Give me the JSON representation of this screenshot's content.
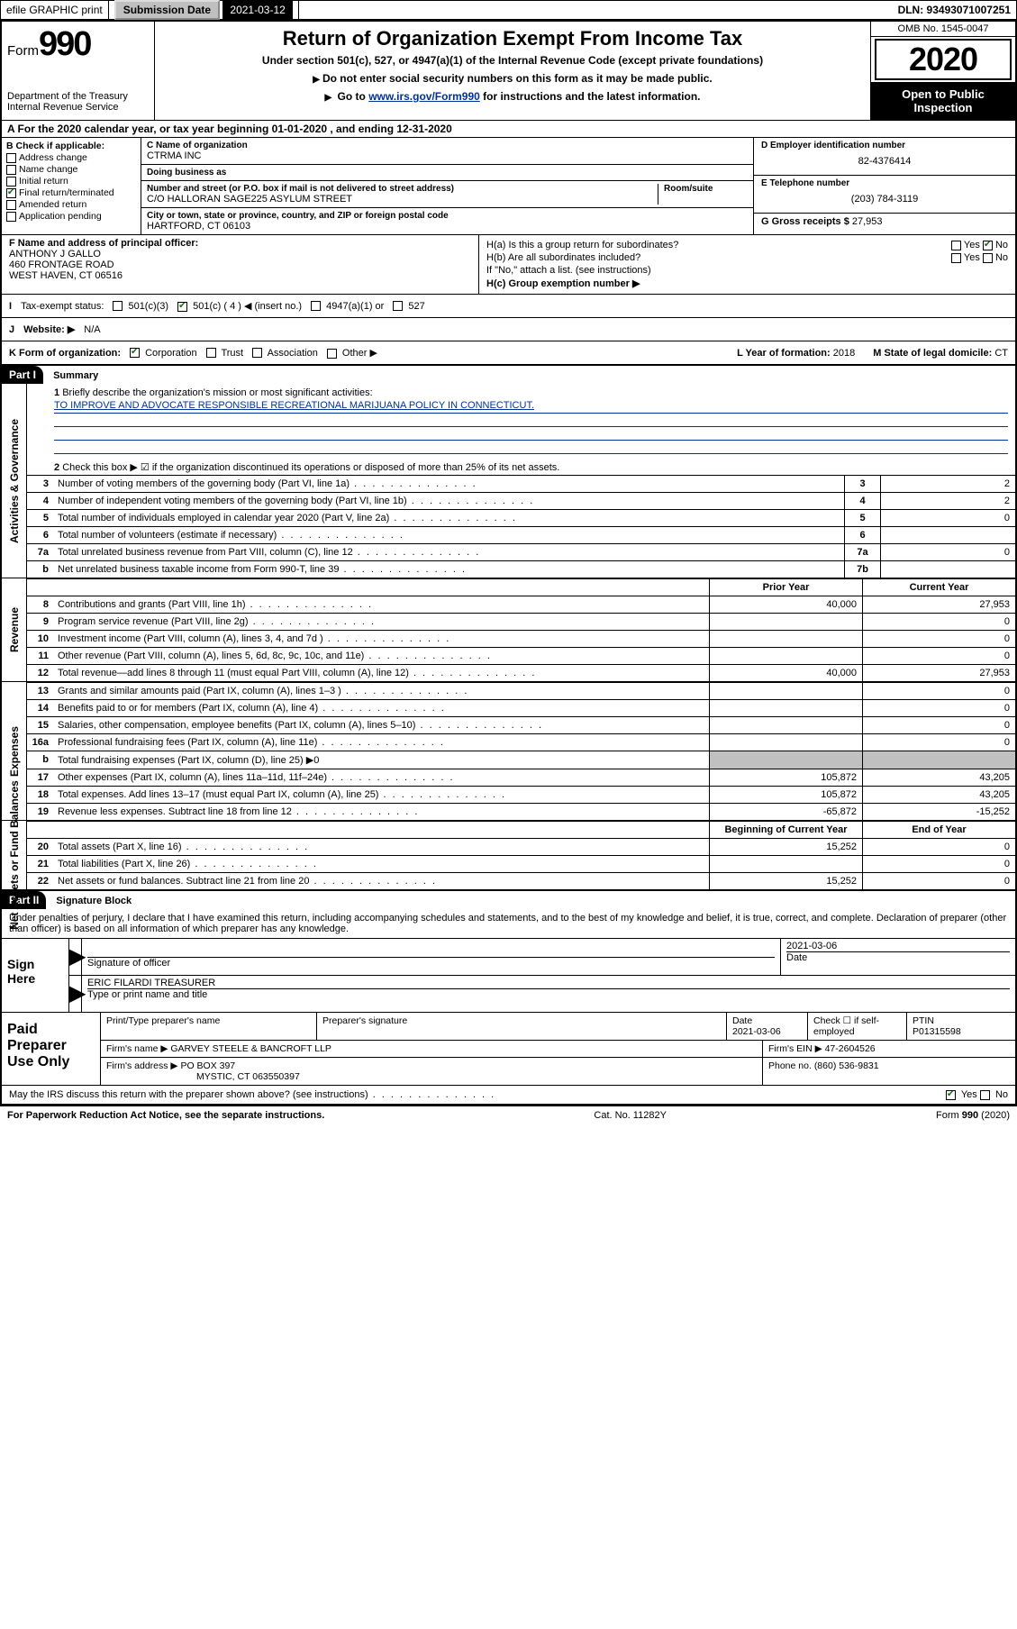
{
  "topbar": {
    "efile": "efile GRAPHIC print",
    "sub_label": "Submission Date",
    "sub_date": "2021-03-12",
    "dln": "DLN: 93493071007251"
  },
  "header": {
    "form_word": "Form",
    "form_num": "990",
    "dept": "Department of the Treasury",
    "irs": "Internal Revenue Service",
    "title": "Return of Organization Exempt From Income Tax",
    "subtitle": "Under section 501(c), 527, or 4947(a)(1) of the Internal Revenue Code (except private foundations)",
    "instr1": "Do not enter social security numbers on this form as it may be made public.",
    "instr2_pre": "Go to ",
    "instr2_link": "www.irs.gov/Form990",
    "instr2_post": " for instructions and the latest information.",
    "omb": "OMB No. 1545-0047",
    "year": "2020",
    "open": "Open to Public Inspection"
  },
  "rowA": "A For the 2020 calendar year, or tax year beginning 01-01-2020   , and ending 12-31-2020",
  "colB": {
    "title": "B Check if applicable:",
    "opts": [
      "Address change",
      "Name change",
      "Initial return",
      "Final return/terminated",
      "Amended return",
      "Application pending"
    ],
    "checked_idx": 3
  },
  "org": {
    "name_lbl": "C Name of organization",
    "name": "CTRMA INC",
    "dba_lbl": "Doing business as",
    "dba": "",
    "addr_lbl": "Number and street (or P.O. box if mail is not delivered to street address)",
    "room_lbl": "Room/suite",
    "addr": "C/O HALLORAN SAGE225 ASYLUM STREET",
    "city_lbl": "City or town, state or province, country, and ZIP or foreign postal code",
    "city": "HARTFORD, CT  06103"
  },
  "right": {
    "ein_lbl": "D Employer identification number",
    "ein": "82-4376414",
    "tel_lbl": "E Telephone number",
    "tel": "(203) 784-3119",
    "gross_lbl": "G Gross receipts $",
    "gross": "27,953"
  },
  "rowF": {
    "lbl": "F Name and address of principal officer:",
    "name": "ANTHONY J GALLO",
    "addr1": "460 FRONTAGE ROAD",
    "addr2": "WEST HAVEN, CT  06516"
  },
  "colH": {
    "ha": "H(a)  Is this a group return for subordinates?",
    "hb": "H(b)  Are all subordinates included?",
    "attach": "If \"No,\" attach a list. (see instructions)",
    "hc": "H(c)  Group exemption number ▶",
    "yes": "Yes",
    "no": "No"
  },
  "rowI": {
    "lbl": "I",
    "text": "Tax-exempt status:",
    "o1": "501(c)(3)",
    "o2": "501(c) ( 4 ) ◀ (insert no.)",
    "o3": "4947(a)(1) or",
    "o4": "527"
  },
  "rowJ": {
    "lbl": "J",
    "text": "Website: ▶",
    "val": "N/A"
  },
  "rowK": {
    "lbl": "K Form of organization:",
    "o1": "Corporation",
    "o2": "Trust",
    "o3": "Association",
    "o4": "Other ▶",
    "yof_lbl": "L Year of formation:",
    "yof": "2018",
    "dom_lbl": "M State of legal domicile:",
    "dom": "CT"
  },
  "partI": {
    "tag": "Part I",
    "title": "Summary"
  },
  "summary": {
    "q1_lbl": "1",
    "q1": "Briefly describe the organization's mission or most significant activities:",
    "q1_val": "TO IMPROVE AND ADVOCATE RESPONSIBLE RECREATIONAL MARIJUANA POLICY IN CONNECTICUT.",
    "q2_lbl": "2",
    "q2": "Check this box ▶ ☑  if the organization discontinued its operations or disposed of more than 25% of its net assets.",
    "lines": [
      {
        "n": "3",
        "t": "Number of voting members of the governing body (Part VI, line 1a)",
        "box": "3",
        "v": "2"
      },
      {
        "n": "4",
        "t": "Number of independent voting members of the governing body (Part VI, line 1b)",
        "box": "4",
        "v": "2"
      },
      {
        "n": "5",
        "t": "Total number of individuals employed in calendar year 2020 (Part V, line 2a)",
        "box": "5",
        "v": "0"
      },
      {
        "n": "6",
        "t": "Total number of volunteers (estimate if necessary)",
        "box": "6",
        "v": ""
      },
      {
        "n": "7a",
        "t": "Total unrelated business revenue from Part VIII, column (C), line 12",
        "box": "7a",
        "v": "0"
      },
      {
        "n": "b",
        "t": "Net unrelated business taxable income from Form 990-T, line 39",
        "box": "7b",
        "v": ""
      }
    ]
  },
  "sections": {
    "side_ag": "Activities & Governance",
    "side_rev": "Revenue",
    "side_exp": "Expenses",
    "side_na": "Net Assets or Fund Balances",
    "col_prior": "Prior Year",
    "col_curr": "Current Year",
    "col_boy": "Beginning of Current Year",
    "col_eoy": "End of Year"
  },
  "revenue": [
    {
      "n": "8",
      "t": "Contributions and grants (Part VIII, line 1h)",
      "p": "40,000",
      "c": "27,953"
    },
    {
      "n": "9",
      "t": "Program service revenue (Part VIII, line 2g)",
      "p": "",
      "c": "0"
    },
    {
      "n": "10",
      "t": "Investment income (Part VIII, column (A), lines 3, 4, and 7d )",
      "p": "",
      "c": "0"
    },
    {
      "n": "11",
      "t": "Other revenue (Part VIII, column (A), lines 5, 6d, 8c, 9c, 10c, and 11e)",
      "p": "",
      "c": "0"
    },
    {
      "n": "12",
      "t": "Total revenue—add lines 8 through 11 (must equal Part VIII, column (A), line 12)",
      "p": "40,000",
      "c": "27,953"
    }
  ],
  "expenses": [
    {
      "n": "13",
      "t": "Grants and similar amounts paid (Part IX, column (A), lines 1–3 )",
      "p": "",
      "c": "0"
    },
    {
      "n": "14",
      "t": "Benefits paid to or for members (Part IX, column (A), line 4)",
      "p": "",
      "c": "0"
    },
    {
      "n": "15",
      "t": "Salaries, other compensation, employee benefits (Part IX, column (A), lines 5–10)",
      "p": "",
      "c": "0"
    },
    {
      "n": "16a",
      "t": "Professional fundraising fees (Part IX, column (A), line 11e)",
      "p": "",
      "c": "0"
    },
    {
      "n": "b",
      "t": "Total fundraising expenses (Part IX, column (D), line 25) ▶0",
      "p": "GREY",
      "c": "GREY"
    },
    {
      "n": "17",
      "t": "Other expenses (Part IX, column (A), lines 11a–11d, 11f–24e)",
      "p": "105,872",
      "c": "43,205"
    },
    {
      "n": "18",
      "t": "Total expenses. Add lines 13–17 (must equal Part IX, column (A), line 25)",
      "p": "105,872",
      "c": "43,205"
    },
    {
      "n": "19",
      "t": "Revenue less expenses. Subtract line 18 from line 12",
      "p": "-65,872",
      "c": "-15,252"
    }
  ],
  "netassets": [
    {
      "n": "20",
      "t": "Total assets (Part X, line 16)",
      "p": "15,252",
      "c": "0"
    },
    {
      "n": "21",
      "t": "Total liabilities (Part X, line 26)",
      "p": "",
      "c": "0"
    },
    {
      "n": "22",
      "t": "Net assets or fund balances. Subtract line 21 from line 20",
      "p": "15,252",
      "c": "0"
    }
  ],
  "partII": {
    "tag": "Part II",
    "title": "Signature Block"
  },
  "perjury": "Under penalties of perjury, I declare that I have examined this return, including accompanying schedules and statements, and to the best of my knowledge and belief, it is true, correct, and complete. Declaration of preparer (other than officer) is based on all information of which preparer has any knowledge.",
  "sign": {
    "here": "Sign Here",
    "sig_lbl": "Signature of officer",
    "date_lbl": "Date",
    "date": "2021-03-06",
    "name": "ERIC FILARDI TREASURER",
    "name_lbl": "Type or print name and title"
  },
  "preparer": {
    "title": "Paid Preparer Use Only",
    "h1": "Print/Type preparer's name",
    "h2": "Preparer's signature",
    "h3": "Date",
    "h3v": "2021-03-06",
    "h4": "Check ☐ if self-employed",
    "h5": "PTIN",
    "h5v": "P01315598",
    "firm_lbl": "Firm's name   ▶",
    "firm": "GARVEY STEELE & BANCROFT LLP",
    "ein_lbl": "Firm's EIN ▶",
    "ein": "47-2604526",
    "addr_lbl": "Firm's address ▶",
    "addr1": "PO BOX 397",
    "addr2": "MYSTIC, CT  063550397",
    "phone_lbl": "Phone no.",
    "phone": "(860) 536-9831"
  },
  "discuss": "May the IRS discuss this return with the preparer shown above? (see instructions)",
  "footer": {
    "left": "For Paperwork Reduction Act Notice, see the separate instructions.",
    "mid": "Cat. No. 11282Y",
    "right": "Form 990 (2020)"
  }
}
